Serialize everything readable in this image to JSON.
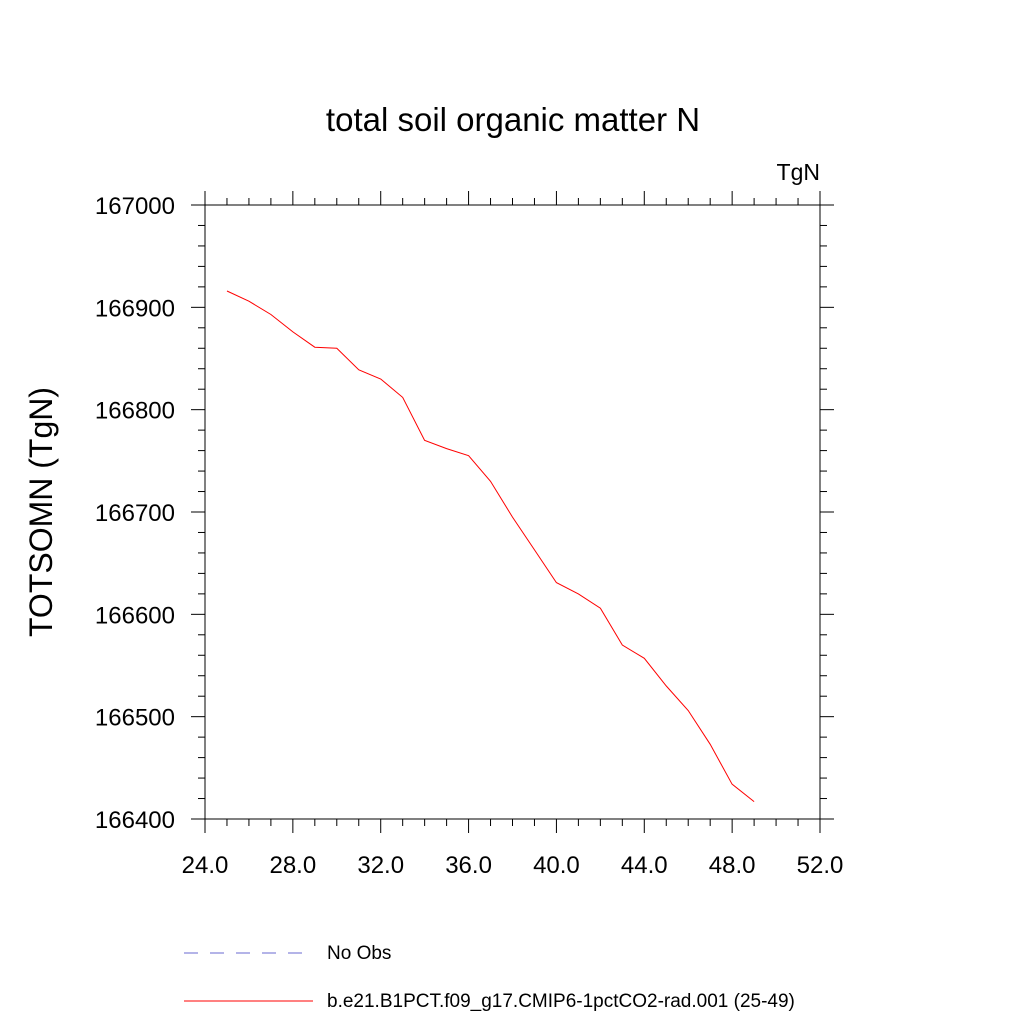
{
  "chart_data": {
    "type": "line",
    "title": "total soil organic matter N",
    "units_label": "TgN",
    "ylabel": "TOTSOMN  (TgN)",
    "xlabel": "",
    "xlim": [
      24,
      52
    ],
    "ylim": [
      166400,
      167000
    ],
    "x_ticks": [
      "24.0",
      "28.0",
      "32.0",
      "36.0",
      "40.0",
      "44.0",
      "48.0",
      "52.0"
    ],
    "y_ticks": [
      "166400",
      "166500",
      "166600",
      "166700",
      "166800",
      "166900",
      "167000"
    ],
    "series": [
      {
        "name": "b.e21.B1PCT.f09_g17.CMIP6-1pctCO2-rad.001 (25-49)",
        "color": "#ff0000",
        "x": [
          25,
          26,
          27,
          28,
          29,
          30,
          31,
          32,
          33,
          34,
          35,
          36,
          37,
          38,
          39,
          40,
          41,
          42,
          43,
          44,
          45,
          46,
          47,
          48,
          49
        ],
        "y": [
          166916,
          166906,
          166893,
          166876,
          166861,
          166860,
          166839,
          166830,
          166812,
          166770,
          166762,
          166755,
          166730,
          166695,
          166663,
          166631,
          166620,
          166606,
          166570,
          166557,
          166530,
          166506,
          166473,
          166434,
          166417
        ]
      }
    ],
    "legend": [
      {
        "label": "No Obs",
        "style": "dashed",
        "color": "#6a6ad0"
      },
      {
        "label": "b.e21.B1PCT.f09_g17.CMIP6-1pctCO2-rad.001 (25-49)",
        "style": "solid",
        "color": "#ff0000"
      }
    ],
    "legend_position": "bottom",
    "grid": false
  }
}
